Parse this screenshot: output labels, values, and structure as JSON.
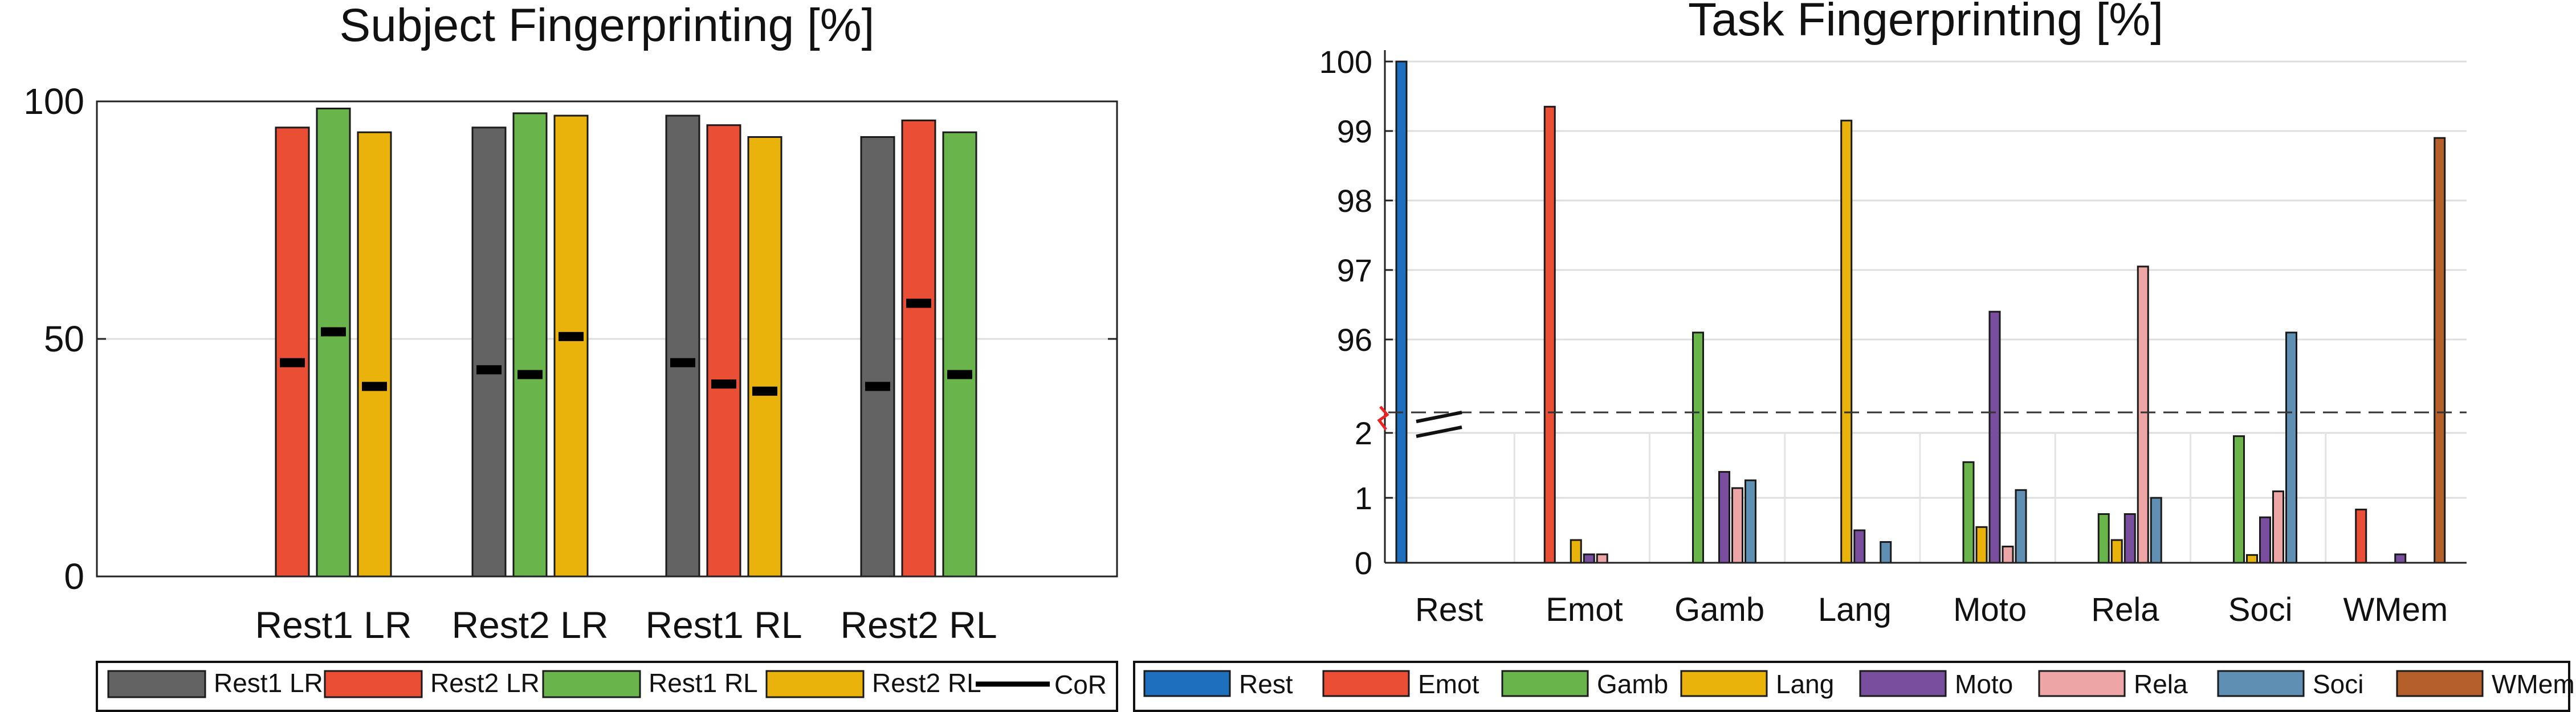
{
  "chart_data": [
    {
      "type": "bar",
      "title": "Subject Fingerprinting [%]",
      "categories": [
        "Rest1 LR",
        "Rest2 LR",
        "Rest1 RL",
        "Rest2 RL"
      ],
      "ylim": [
        0,
        100
      ],
      "yticks": [
        "0",
        "50",
        "100"
      ],
      "grid": true,
      "legend_placement": "bottom",
      "series": [
        {
          "name": "Rest1 LR",
          "color": "#636363",
          "values": [
            null,
            94.5,
            97,
            92.5
          ],
          "cor": [
            null,
            43.5,
            45,
            40
          ]
        },
        {
          "name": "Rest2 LR",
          "color": "#ea4e35",
          "values": [
            94.5,
            null,
            95,
            96
          ],
          "cor": [
            45,
            null,
            40.5,
            57.5
          ]
        },
        {
          "name": "Rest1 RL",
          "color": "#69b54c",
          "values": [
            98.5,
            97.5,
            null,
            93.5
          ],
          "cor": [
            51.5,
            42.5,
            null,
            42.5
          ]
        },
        {
          "name": "Rest2 RL",
          "color": "#e9b30c",
          "values": [
            93.5,
            97,
            92.5,
            null
          ],
          "cor": [
            40,
            50.5,
            39,
            null
          ]
        }
      ],
      "cor_label": "CoR"
    },
    {
      "type": "bar",
      "title": "Task Fingerprinting [%]",
      "categories": [
        "Rest",
        "Emot",
        "Gamb",
        "Lang",
        "Moto",
        "Rela",
        "Soci",
        "WMem"
      ],
      "y_axis": "broken",
      "ylim_lower": [
        0,
        2
      ],
      "ylim_upper": [
        95,
        100
      ],
      "yticks_lower": [
        "0",
        "1",
        "2"
      ],
      "yticks_upper": [
        "96",
        "97",
        "98",
        "99",
        "100"
      ],
      "grid": true,
      "legend_placement": "bottom",
      "series": [
        {
          "name": "Rest",
          "color": "#1f6fbf",
          "values": [
            100,
            0,
            0,
            0,
            0,
            0,
            0,
            0
          ]
        },
        {
          "name": "Emot",
          "color": "#ea4e35",
          "values": [
            0,
            99.35,
            0,
            0,
            0,
            0,
            0,
            0.82
          ]
        },
        {
          "name": "Gamb",
          "color": "#69b54c",
          "values": [
            0,
            0,
            96.1,
            0,
            1.55,
            0.75,
            1.95,
            0
          ]
        },
        {
          "name": "Lang",
          "color": "#e9b30c",
          "values": [
            0,
            0.35,
            0,
            99.15,
            0.55,
            0.35,
            0.12,
            0
          ]
        },
        {
          "name": "Moto",
          "color": "#7a4e9e",
          "values": [
            0,
            0.13,
            1.4,
            0.5,
            96.4,
            0.75,
            0.7,
            0.13
          ]
        },
        {
          "name": "Rela",
          "color": "#eda5a5",
          "values": [
            0,
            0.13,
            1.15,
            0,
            0.25,
            97.05,
            1.1,
            0
          ]
        },
        {
          "name": "Soci",
          "color": "#5f8fb3",
          "values": [
            0,
            0,
            1.27,
            0.32,
            1.12,
            1.0,
            96.1,
            0
          ]
        },
        {
          "name": "WMem",
          "color": "#b5602a",
          "values": [
            0,
            0,
            0,
            0,
            0,
            0,
            0,
            98.9
          ]
        }
      ]
    }
  ]
}
